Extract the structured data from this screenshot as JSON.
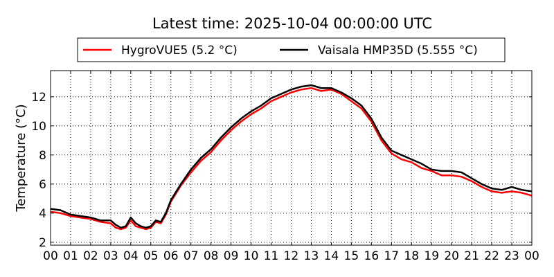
{
  "chart_data": {
    "type": "line",
    "title": "Latest time: 2025-10-04 00:00:00 UTC",
    "xlabel": "",
    "ylabel": "Temperature (°C)",
    "x_tick_labels": [
      "00",
      "01",
      "02",
      "03",
      "04",
      "05",
      "06",
      "07",
      "08",
      "09",
      "10",
      "11",
      "12",
      "13",
      "14",
      "15",
      "16",
      "17",
      "18",
      "19",
      "20",
      "21",
      "22",
      "23",
      "00"
    ],
    "y_ticks": [
      2,
      4,
      6,
      8,
      10,
      12
    ],
    "xlim": [
      0,
      24
    ],
    "ylim": [
      1.8,
      13.8
    ],
    "grid": true,
    "legend_position": "top-center",
    "series": [
      {
        "name": "HygroVUE5 (5.2 °C)",
        "color": "#ff0000",
        "x": [
          0,
          0.5,
          1,
          1.5,
          2,
          2.5,
          3,
          3.25,
          3.5,
          3.75,
          4,
          4.25,
          4.5,
          4.75,
          5,
          5.25,
          5.5,
          5.75,
          6,
          6.5,
          7,
          7.5,
          8,
          8.5,
          9,
          9.5,
          10,
          10.5,
          11,
          11.5,
          12,
          12.5,
          13,
          13.5,
          14,
          14.5,
          15,
          15.5,
          16,
          16.5,
          17,
          17.5,
          18,
          18.5,
          19,
          19.5,
          20,
          20.5,
          21,
          21.5,
          22,
          22.5,
          23,
          23.5,
          24
        ],
        "y": [
          4.1,
          4.0,
          3.8,
          3.7,
          3.6,
          3.4,
          3.3,
          3.0,
          2.9,
          3.0,
          3.5,
          3.1,
          3.0,
          2.9,
          3.0,
          3.4,
          3.3,
          3.9,
          4.8,
          5.9,
          6.8,
          7.6,
          8.2,
          9.0,
          9.7,
          10.3,
          10.8,
          11.2,
          11.7,
          12.0,
          12.3,
          12.5,
          12.6,
          12.4,
          12.5,
          12.2,
          11.7,
          11.2,
          10.3,
          9.0,
          8.1,
          7.7,
          7.5,
          7.1,
          6.9,
          6.6,
          6.6,
          6.5,
          6.2,
          5.8,
          5.5,
          5.4,
          5.5,
          5.4,
          5.2
        ]
      },
      {
        "name": "Vaisala HMP35D (5.555 °C)",
        "color": "#000000",
        "x": [
          0,
          0.5,
          1,
          1.5,
          2,
          2.5,
          3,
          3.25,
          3.5,
          3.75,
          4,
          4.25,
          4.5,
          4.75,
          5,
          5.25,
          5.5,
          5.75,
          6,
          6.5,
          7,
          7.5,
          8,
          8.5,
          9,
          9.5,
          10,
          10.5,
          11,
          11.5,
          12,
          12.5,
          13,
          13.5,
          14,
          14.5,
          15,
          15.5,
          16,
          16.5,
          17,
          17.5,
          18,
          18.5,
          19,
          19.5,
          20,
          20.5,
          21,
          21.5,
          22,
          22.5,
          23,
          23.5,
          24
        ],
        "y": [
          4.3,
          4.2,
          3.9,
          3.8,
          3.7,
          3.5,
          3.5,
          3.2,
          3.0,
          3.1,
          3.7,
          3.3,
          3.1,
          3.0,
          3.1,
          3.5,
          3.4,
          4.0,
          4.9,
          6.0,
          7.0,
          7.8,
          8.4,
          9.2,
          9.9,
          10.5,
          11.0,
          11.4,
          11.9,
          12.2,
          12.5,
          12.7,
          12.8,
          12.6,
          12.6,
          12.3,
          11.9,
          11.4,
          10.5,
          9.2,
          8.3,
          8.0,
          7.7,
          7.4,
          7.0,
          6.9,
          6.9,
          6.8,
          6.4,
          6.0,
          5.7,
          5.6,
          5.8,
          5.6,
          5.5
        ]
      }
    ]
  }
}
